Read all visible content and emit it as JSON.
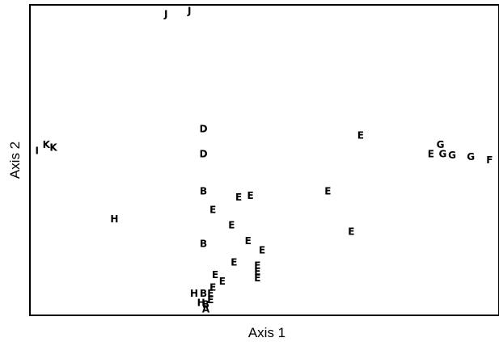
{
  "chart_data": {
    "type": "scatter",
    "title": "",
    "xlabel": "Axis 1",
    "ylabel": "Axis 2",
    "grid": false,
    "legend": "none",
    "ticks": false,
    "points": [
      {
        "label": "J",
        "x": 29,
        "y": 97
      },
      {
        "label": "J",
        "x": 34,
        "y": 98
      },
      {
        "label": "D",
        "x": 37,
        "y": 60
      },
      {
        "label": "D",
        "x": 37,
        "y": 52
      },
      {
        "label": "K",
        "x": 3.5,
        "y": 55
      },
      {
        "label": "K",
        "x": 5,
        "y": 54
      },
      {
        "label": "I",
        "x": 1.5,
        "y": 53
      },
      {
        "label": "E",
        "x": 70.5,
        "y": 58
      },
      {
        "label": "G",
        "x": 87.5,
        "y": 55
      },
      {
        "label": "E",
        "x": 85.5,
        "y": 52
      },
      {
        "label": "G",
        "x": 88,
        "y": 52
      },
      {
        "label": "G",
        "x": 90,
        "y": 51.5
      },
      {
        "label": "G",
        "x": 94,
        "y": 51
      },
      {
        "label": "F",
        "x": 98,
        "y": 50
      },
      {
        "label": "B",
        "x": 37,
        "y": 40
      },
      {
        "label": "E",
        "x": 44.5,
        "y": 38
      },
      {
        "label": "E",
        "x": 47,
        "y": 38.5
      },
      {
        "label": "E",
        "x": 63.5,
        "y": 40
      },
      {
        "label": "E",
        "x": 39,
        "y": 34
      },
      {
        "label": "H",
        "x": 18,
        "y": 31
      },
      {
        "label": "E",
        "x": 43,
        "y": 29
      },
      {
        "label": "B",
        "x": 37,
        "y": 23
      },
      {
        "label": "E",
        "x": 46.5,
        "y": 24
      },
      {
        "label": "E",
        "x": 68.5,
        "y": 27
      },
      {
        "label": "E",
        "x": 49.5,
        "y": 21
      },
      {
        "label": "E",
        "x": 43.5,
        "y": 17
      },
      {
        "label": "E",
        "x": 48.5,
        "y": 16
      },
      {
        "label": "E",
        "x": 48.5,
        "y": 14
      },
      {
        "label": "E",
        "x": 48.5,
        "y": 12
      },
      {
        "label": "E",
        "x": 39.5,
        "y": 13
      },
      {
        "label": "E",
        "x": 41,
        "y": 11
      },
      {
        "label": "E",
        "x": 39,
        "y": 9
      },
      {
        "label": "E",
        "x": 38.5,
        "y": 7
      },
      {
        "label": "H",
        "x": 35,
        "y": 7
      },
      {
        "label": "B",
        "x": 37,
        "y": 7
      },
      {
        "label": "E",
        "x": 38.5,
        "y": 5
      },
      {
        "label": "H",
        "x": 36.5,
        "y": 4
      },
      {
        "label": "B",
        "x": 37.5,
        "y": 3.5
      },
      {
        "label": "A",
        "x": 37.5,
        "y": 2
      }
    ],
    "xlim": [
      0,
      100
    ],
    "ylim": [
      0,
      100
    ]
  }
}
